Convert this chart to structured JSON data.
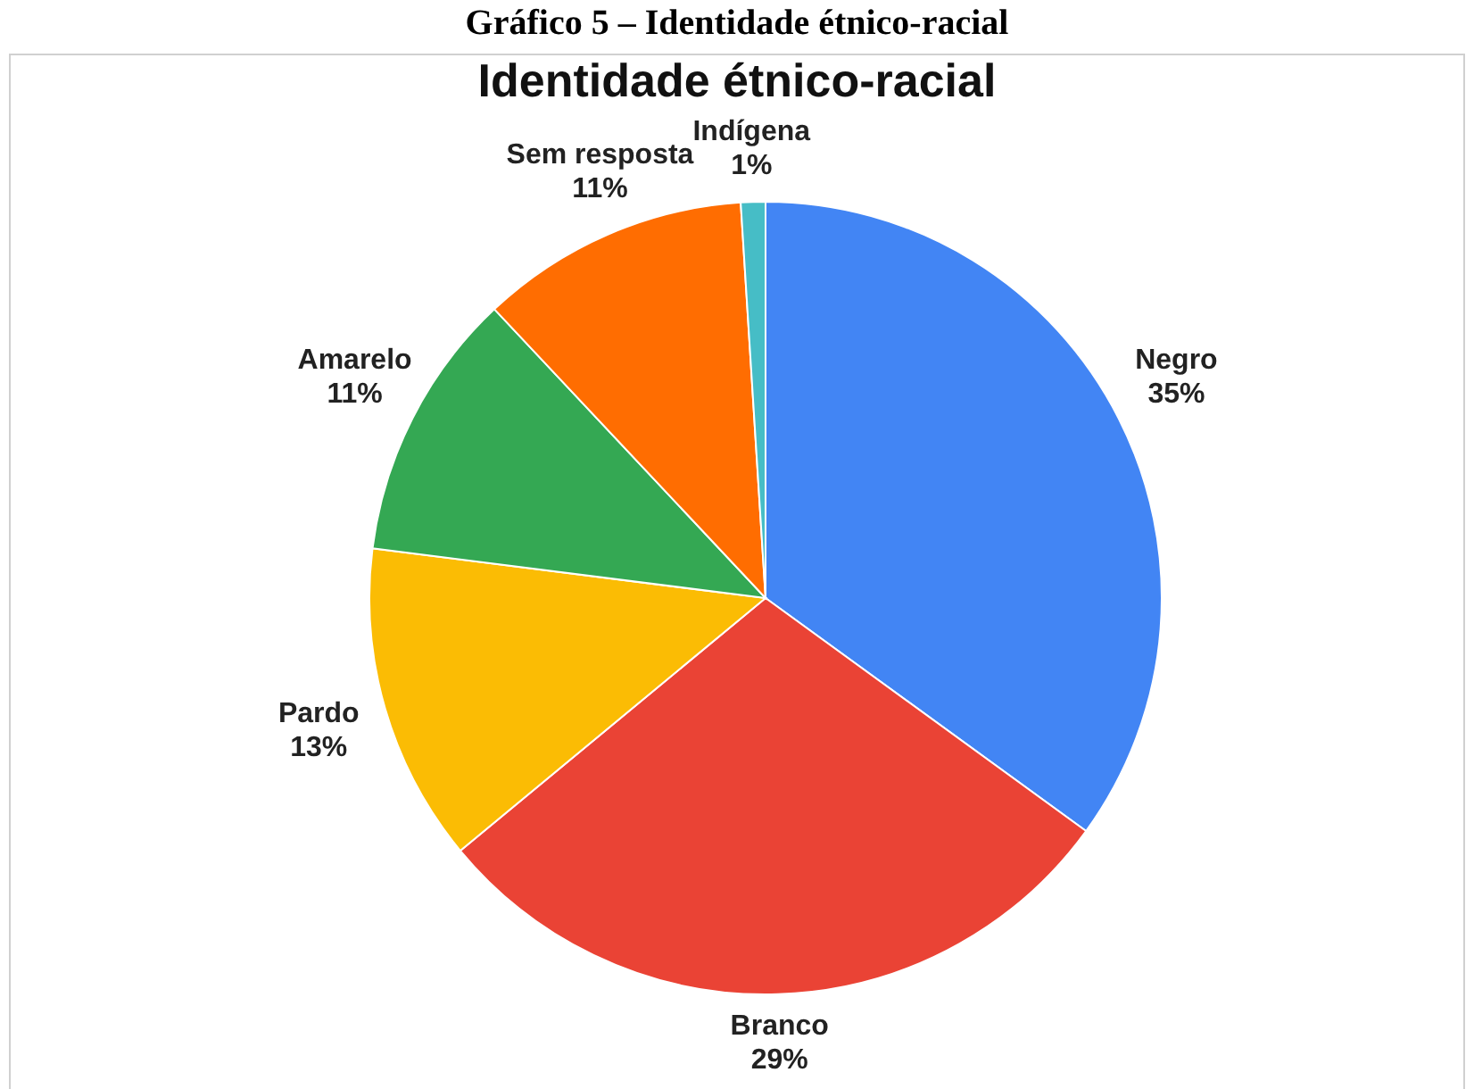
{
  "chart_data": {
    "type": "pie",
    "title": "Identidade étnico-racial",
    "subtitle": "Gráfico 5 – Identidade étnico-racial",
    "categories": [
      "Negro",
      "Branco",
      "Pardo",
      "Amarelo",
      "Sem resposta",
      "Indígena"
    ],
    "values": [
      35,
      29,
      13,
      11,
      11,
      1
    ],
    "value_labels": [
      "35%",
      "29%",
      "13%",
      "11%",
      "11%",
      "1%"
    ],
    "colors": [
      "#4285f4",
      "#ea4335",
      "#fbbc04",
      "#34a853",
      "#ff6d01",
      "#46bdc6"
    ],
    "legend": false
  }
}
